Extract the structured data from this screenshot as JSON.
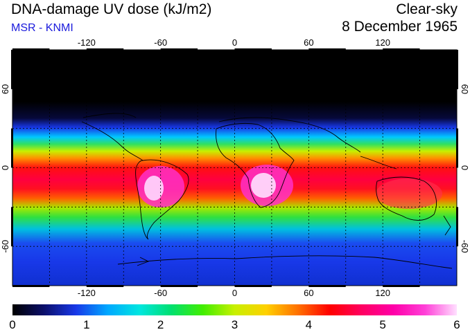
{
  "header": {
    "title": "DNA-damage UV dose (kJ/m2)",
    "source": "MSR - KNMI",
    "condition": "Clear-sky",
    "date": "8 December 1965"
  },
  "colors": {
    "source_text": "#1a1adc"
  },
  "map": {
    "lon_ticks": [
      -120,
      -60,
      0,
      60,
      120
    ],
    "lat_ticks": [
      60,
      0,
      -60
    ],
    "lon_range": [
      -180,
      180
    ],
    "lat_range": [
      -90,
      90
    ],
    "gridline_lons": [
      -150,
      -120,
      -90,
      -60,
      -30,
      0,
      30,
      60,
      90,
      120,
      150
    ],
    "gridline_lats": [
      -60,
      -30,
      0,
      30,
      60
    ]
  },
  "colorbar": {
    "min": 0,
    "max": 6,
    "tick_labels": [
      "0",
      "1",
      "2",
      "3",
      "4",
      "5",
      "6"
    ],
    "stops": [
      "#000000",
      "#0b0f6b",
      "#1838e8",
      "#00a8ff",
      "#00e6e0",
      "#00e070",
      "#42ee00",
      "#c8f000",
      "#ffd000",
      "#ff7000",
      "#ff0000",
      "#ff0060",
      "#ff00a8",
      "#ff40d8",
      "#ffe0ff"
    ]
  }
}
